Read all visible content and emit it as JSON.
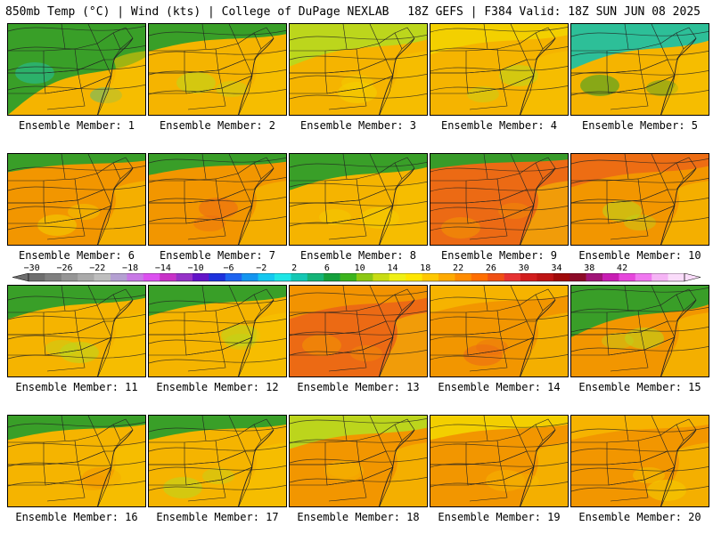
{
  "header": {
    "left_title": "850mb Temp (°C) | Wind (kts) | College of DuPage NEXLAB",
    "right_title": "18Z GEFS | F384 Valid: 18Z SUN JUN 08 2025"
  },
  "panels": [
    {
      "caption": "Ensemble Member: 1"
    },
    {
      "caption": "Ensemble Member: 2"
    },
    {
      "caption": "Ensemble Member: 3"
    },
    {
      "caption": "Ensemble Member: 4"
    },
    {
      "caption": "Ensemble Member: 5"
    },
    {
      "caption": "Ensemble Member: 6"
    },
    {
      "caption": "Ensemble Member: 7"
    },
    {
      "caption": "Ensemble Member: 8"
    },
    {
      "caption": "Ensemble Member: 9"
    },
    {
      "caption": "Ensemble Member: 10"
    },
    {
      "caption": "Ensemble Member: 11"
    },
    {
      "caption": "Ensemble Member: 12"
    },
    {
      "caption": "Ensemble Member: 13"
    },
    {
      "caption": "Ensemble Member: 14"
    },
    {
      "caption": "Ensemble Member: 15"
    },
    {
      "caption": "Ensemble Member: 16"
    },
    {
      "caption": "Ensemble Member: 17"
    },
    {
      "caption": "Ensemble Member: 18"
    },
    {
      "caption": "Ensemble Member: 19"
    },
    {
      "caption": "Ensemble Member: 20"
    }
  ],
  "colorbar": {
    "labels": [
      "−30",
      "−26",
      "−22",
      "−18",
      "−14",
      "−10",
      "−6",
      "−2",
      "2",
      "6",
      "10",
      "14",
      "18",
      "22",
      "26",
      "30",
      "34",
      "38",
      "42"
    ],
    "colors": [
      "#6e6e6e",
      "#808080",
      "#969696",
      "#aaaaaa",
      "#bebebe",
      "#b4a0d2",
      "#c878e6",
      "#dc50f0",
      "#c832c8",
      "#9632c8",
      "#6414c8",
      "#1e32dc",
      "#1e64f0",
      "#1496f0",
      "#14c8f0",
      "#1ee6e6",
      "#14c8b4",
      "#14b478",
      "#14a03c",
      "#3cb41e",
      "#8cc814",
      "#c8dc14",
      "#f0f014",
      "#ffe600",
      "#ffc800",
      "#ffaa00",
      "#ff8c00",
      "#ff6e00",
      "#f05014",
      "#e63232",
      "#d21e1e",
      "#be1414",
      "#a00a0a",
      "#8c0a28",
      "#a01478",
      "#c81eb4",
      "#e646dc",
      "#f078f0",
      "#f5b4f5",
      "#fadcfa"
    ]
  },
  "style": {
    "green": "#2e9e2a",
    "lime": "#b8d81e",
    "yellow": "#f2d200",
    "gold": "#f5b400",
    "orange": "#f29600",
    "red_orange": "#ec6a14",
    "teal": "#22c0a0",
    "line": "#222222"
  }
}
